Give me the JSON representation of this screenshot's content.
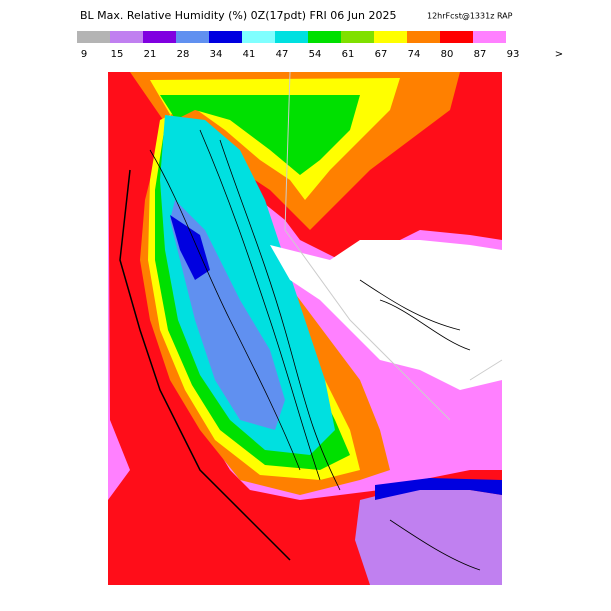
{
  "header": {
    "title": "BL Max. Relative Humidity (%) 0Z(17pdt) FRI 06 Jun 2025",
    "subtitle": "12hrFcst@1331z RAP"
  },
  "legend": {
    "colors": [
      "#b4b4b4",
      "#c080f0",
      "#8000e0",
      "#6090f0",
      "#0000e0",
      "#80ffff",
      "#00e0e0",
      "#00e000",
      "#80e000",
      "#ffff00",
      "#ff8000",
      "#ff0000",
      "#ff80ff"
    ],
    "labels": [
      9,
      15,
      21,
      28,
      34,
      41,
      47,
      54,
      61,
      67,
      74,
      80,
      87,
      93,
      ">"
    ]
  }
}
